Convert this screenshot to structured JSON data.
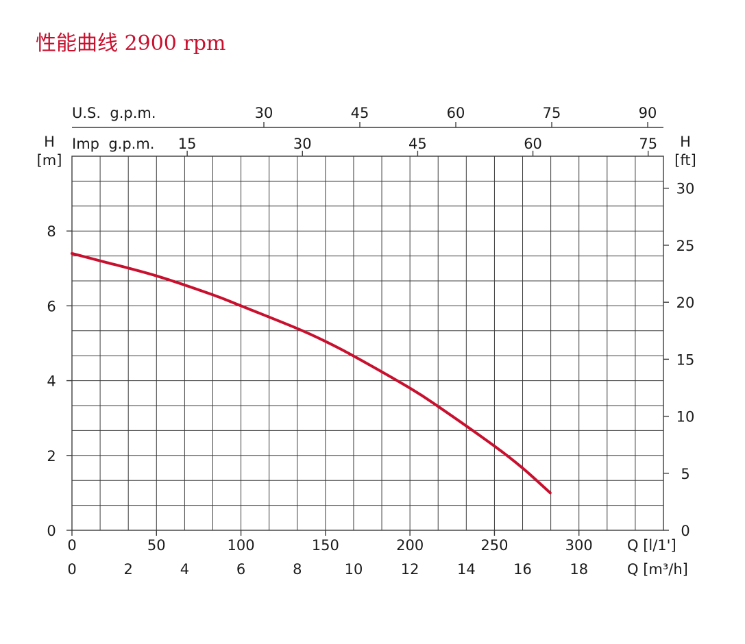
{
  "title": "性能曲线 2900 rpm",
  "colors": {
    "curve": "#c8102e",
    "title": "#c8102e",
    "grid": "#3c3c3c"
  },
  "chart_data": {
    "type": "line",
    "title": "性能曲线 2900 rpm",
    "x_unit_label": "Q [l/1']",
    "x_unit_label_2": "Q [m³/h]",
    "y_name_left": "H",
    "y_unit_left": "[m]",
    "y_name_right": "H",
    "y_unit_right": "[ft]",
    "top_axis_1_label": "U.S.  g.p.m.",
    "top_axis_2_label": "Imp  g.p.m.",
    "xlim_lpm": [
      0,
      350
    ],
    "ylim_m": [
      0,
      10
    ],
    "x_ticks_lpm": [
      "0",
      "50",
      "100",
      "150",
      "200",
      "250",
      "300"
    ],
    "x_ticks_m3h": [
      "0",
      "2",
      "4",
      "6",
      "8",
      "10",
      "12",
      "14",
      "16",
      "18"
    ],
    "y_ticks_m": [
      "0",
      "2",
      "4",
      "6",
      "8"
    ],
    "y_ticks_ft": [
      "0",
      "5",
      "10",
      "15",
      "20",
      "25",
      "30"
    ],
    "top_ticks_us_gpm": [
      "30",
      "45",
      "60",
      "75",
      "90"
    ],
    "top_ticks_imp_gpm": [
      "15",
      "30",
      "45",
      "60",
      "75"
    ],
    "grid": true,
    "series": [
      {
        "x": [
          0,
          17,
          50,
          83,
          100,
          133,
          150,
          167,
          200,
          217,
          250,
          267,
          283
        ],
        "y": [
          7.4,
          7.2,
          6.8,
          6.3,
          6.0,
          5.4,
          5.05,
          4.65,
          3.8,
          3.3,
          2.25,
          1.65,
          1.0
        ]
      }
    ]
  }
}
